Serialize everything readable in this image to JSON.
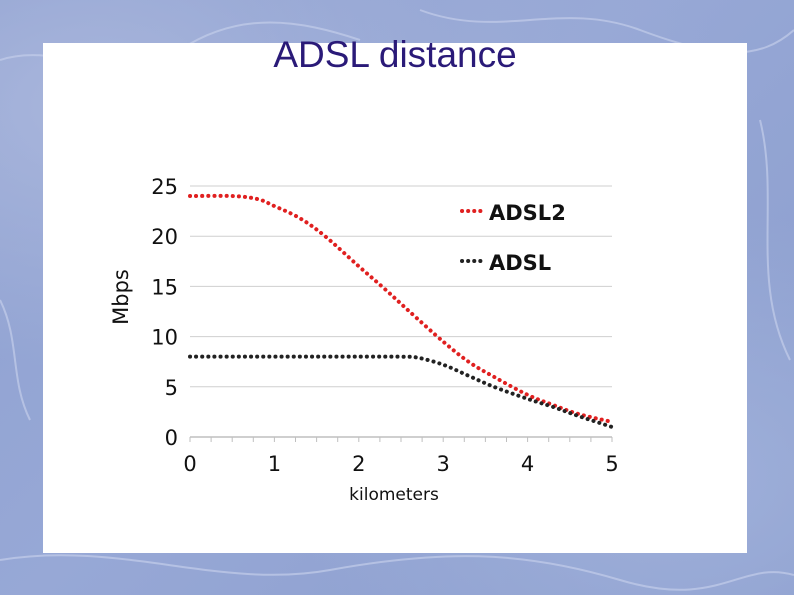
{
  "slide": {
    "title": "ADSL distance"
  },
  "chart_data": {
    "type": "line",
    "title": "ADSL distance",
    "xlabel": "kilometers",
    "ylabel": "Mbps",
    "xlim": [
      0,
      5
    ],
    "ylim": [
      0,
      25
    ],
    "xticks": [
      "0",
      "1",
      "2",
      "3",
      "4",
      "5"
    ],
    "yticks": [
      "0",
      "5",
      "10",
      "15",
      "20",
      "25"
    ],
    "grid": "horizontal",
    "legend": "top-right",
    "series": [
      {
        "name": "ADSL2",
        "color": "#e02020",
        "style": "dotted",
        "x": [
          0,
          0.5,
          0.8,
          1,
          1.3,
          1.6,
          2,
          2.3,
          2.6,
          3,
          3.3,
          3.6,
          4,
          4.3,
          4.6,
          5
        ],
        "y": [
          24,
          24,
          23.7,
          23,
          21.8,
          20,
          17,
          14.8,
          12.5,
          9.5,
          7.5,
          6,
          4.2,
          3.2,
          2.3,
          1.5
        ]
      },
      {
        "name": "ADSL",
        "color": "#222222",
        "style": "dotted",
        "x": [
          0,
          0.5,
          1,
          1.5,
          2,
          2.5,
          2.7,
          3,
          3.3,
          3.6,
          4,
          4.3,
          4.6,
          5
        ],
        "y": [
          8,
          8,
          8,
          8,
          8,
          8,
          7.9,
          7.2,
          6.1,
          5,
          3.8,
          3,
          2.1,
          1
        ]
      }
    ]
  }
}
